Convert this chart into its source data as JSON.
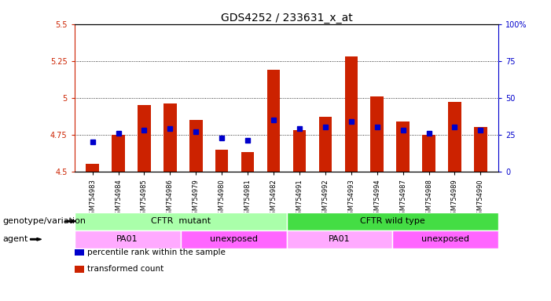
{
  "title": "GDS4252 / 233631_x_at",
  "samples": [
    "GSM754983",
    "GSM754984",
    "GSM754985",
    "GSM754986",
    "GSM754979",
    "GSM754980",
    "GSM754981",
    "GSM754982",
    "GSM754991",
    "GSM754992",
    "GSM754993",
    "GSM754994",
    "GSM754987",
    "GSM754988",
    "GSM754989",
    "GSM754990"
  ],
  "transformed_counts": [
    4.55,
    4.75,
    4.95,
    4.96,
    4.85,
    4.65,
    4.63,
    5.19,
    4.78,
    4.87,
    5.28,
    5.01,
    4.84,
    4.75,
    4.97,
    4.8
  ],
  "percentile_ranks": [
    20,
    26,
    28,
    29,
    27,
    23,
    21,
    35,
    29,
    30,
    34,
    30,
    28,
    26,
    30,
    28
  ],
  "bar_bottom": 4.5,
  "ylim_left": [
    4.5,
    5.5
  ],
  "ylim_right": [
    0,
    100
  ],
  "yticks_left": [
    4.5,
    4.75,
    5.0,
    5.25,
    5.5
  ],
  "yticks_right": [
    0,
    25,
    50,
    75,
    100
  ],
  "ytick_labels_left": [
    "4.5",
    "4.75",
    "5",
    "5.25",
    "5.5"
  ],
  "ytick_labels_right": [
    "0",
    "25",
    "50",
    "75",
    "100%"
  ],
  "hlines": [
    4.75,
    5.0,
    5.25
  ],
  "bar_color": "#CC2200",
  "dot_color": "#0000CC",
  "bar_width": 0.5,
  "groups": [
    {
      "label": "CFTR  mutant",
      "start": 0,
      "end": 8,
      "color": "#AAFFAA"
    },
    {
      "label": "CFTR wild type",
      "start": 8,
      "end": 16,
      "color": "#44DD44"
    }
  ],
  "agents": [
    {
      "label": "PA01",
      "start": 0,
      "end": 4,
      "color": "#FFAAFF"
    },
    {
      "label": "unexposed",
      "start": 4,
      "end": 8,
      "color": "#FF66FF"
    },
    {
      "label": "PA01",
      "start": 8,
      "end": 12,
      "color": "#FFAAFF"
    },
    {
      "label": "unexposed",
      "start": 12,
      "end": 16,
      "color": "#FF66FF"
    }
  ],
  "genotype_label": "genotype/variation",
  "agent_label": "agent",
  "legend_items": [
    {
      "color": "#CC2200",
      "label": "  transformed count"
    },
    {
      "color": "#0000CC",
      "label": "  percentile rank within the sample"
    }
  ],
  "bar_color_left": "#CC2200",
  "dot_color_right": "#0000CC",
  "title_fontsize": 10,
  "tick_fontsize": 7,
  "label_fontsize": 8,
  "band_fontsize": 8
}
